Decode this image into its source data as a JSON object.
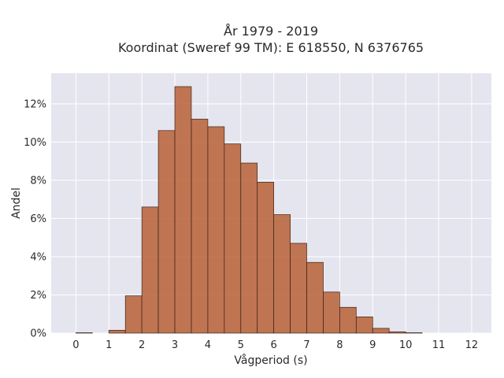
{
  "chart_data": {
    "type": "bar",
    "title": "År 1979 - 2019",
    "subtitle": "Koordinat (Sweref 99 TM): E 618550, N 6376765",
    "xlabel": "Vågperiod (s)",
    "ylabel": "Andel",
    "xlim": [
      -0.75,
      12.6
    ],
    "ylim": [
      0,
      13.6
    ],
    "x_ticks": [
      0,
      1,
      2,
      3,
      4,
      5,
      6,
      7,
      8,
      9,
      10,
      11,
      12
    ],
    "y_ticks": [
      0,
      2,
      4,
      6,
      8,
      10,
      12
    ],
    "y_tick_suffix": "%",
    "bin_width": 0.5,
    "bin_starts": [
      0,
      0.5,
      1,
      1.5,
      2,
      2.5,
      3,
      3.5,
      4,
      4.5,
      5,
      5.5,
      6,
      6.5,
      7,
      7.5,
      8,
      8.5,
      9,
      9.5,
      10
    ],
    "values": [
      0.02,
      0,
      0.15,
      1.95,
      6.6,
      10.6,
      12.9,
      11.2,
      10.8,
      9.9,
      8.9,
      7.9,
      6.2,
      4.7,
      3.7,
      2.15,
      1.35,
      0.85,
      0.25,
      0.07,
      0.02
    ],
    "bar_color": "#b5582a",
    "bar_opacity": 0.8,
    "plot_background": "#e5e5ef",
    "grid": true
  }
}
